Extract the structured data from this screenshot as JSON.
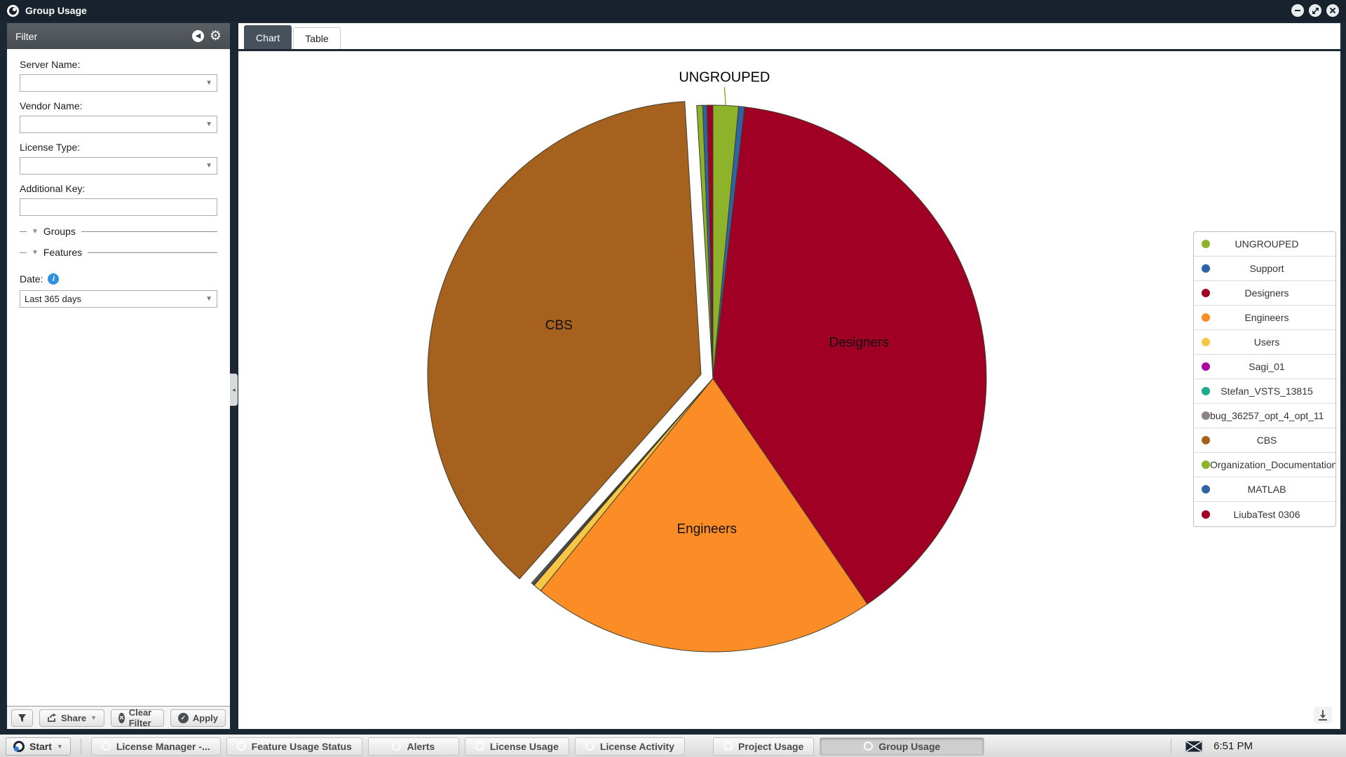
{
  "titlebar": {
    "title": "Group Usage"
  },
  "filter_panel": {
    "header": "Filter",
    "fields": [
      {
        "label": "Server Name:",
        "type": "select",
        "value": ""
      },
      {
        "label": "Vendor Name:",
        "type": "select",
        "value": ""
      },
      {
        "label": "License Type:",
        "type": "select",
        "value": ""
      },
      {
        "label": "Additional Key:",
        "type": "text",
        "value": ""
      }
    ],
    "sections": [
      {
        "label": "Groups"
      },
      {
        "label": "Features"
      }
    ],
    "date_label": "Date:",
    "date_value": "Last 365 days",
    "buttons": {
      "share": "Share",
      "clear": "Clear Filter",
      "apply": "Apply"
    }
  },
  "tabs": [
    {
      "label": "Chart",
      "active": true
    },
    {
      "label": "Table",
      "active": false
    }
  ],
  "chart_data": {
    "type": "pie",
    "title": "",
    "unit": "percent_of_group_usage",
    "legend_position": "right",
    "slice_stroke": "#3f3f2f",
    "series": [
      {
        "name": "UNGROUPED",
        "value": 1.5,
        "color": "#8db32a",
        "callout": true
      },
      {
        "name": "Support",
        "value": 0.35,
        "color": "#2e64a5"
      },
      {
        "name": "Designers",
        "value": 38.6,
        "color": "#a00023",
        "label_inside": true
      },
      {
        "name": "Engineers",
        "value": 20.4,
        "color": "#fb8c26",
        "label_inside": true
      },
      {
        "name": "Users",
        "value": 0.5,
        "color": "#f7c644"
      },
      {
        "name": "Sagi_01",
        "value": 0.07,
        "color": "#aa09a0"
      },
      {
        "name": "Stefan_VSTS_13815",
        "value": 0.07,
        "color": "#20a98e"
      },
      {
        "name": "bug_36257_opt_4_opt_11",
        "value": 0.06,
        "color": "#8d8484"
      },
      {
        "name": "CBS",
        "value": 37.5,
        "color": "#a6611e",
        "label_inside": true,
        "explode": 18
      },
      {
        "name": "Organization_Documentation",
        "value": 0.35,
        "color": "#8db32a"
      },
      {
        "name": "MATLAB",
        "value": 0.25,
        "color": "#2e64a5"
      },
      {
        "name": "LiubaTest 0306",
        "value": 0.35,
        "color": "#a00023"
      }
    ]
  },
  "taskbar": {
    "start": "Start",
    "buttons": [
      {
        "label": "License Manager -...",
        "active": false
      },
      {
        "label": "Feature Usage Status",
        "active": false
      },
      {
        "label": "Alerts",
        "active": false
      },
      {
        "label": "License Usage",
        "active": false
      },
      {
        "label": "License Activity",
        "active": false
      },
      {
        "label": "Project Usage",
        "active": false
      },
      {
        "label": "Group Usage",
        "active": true
      }
    ],
    "clock": "6:51 PM"
  }
}
